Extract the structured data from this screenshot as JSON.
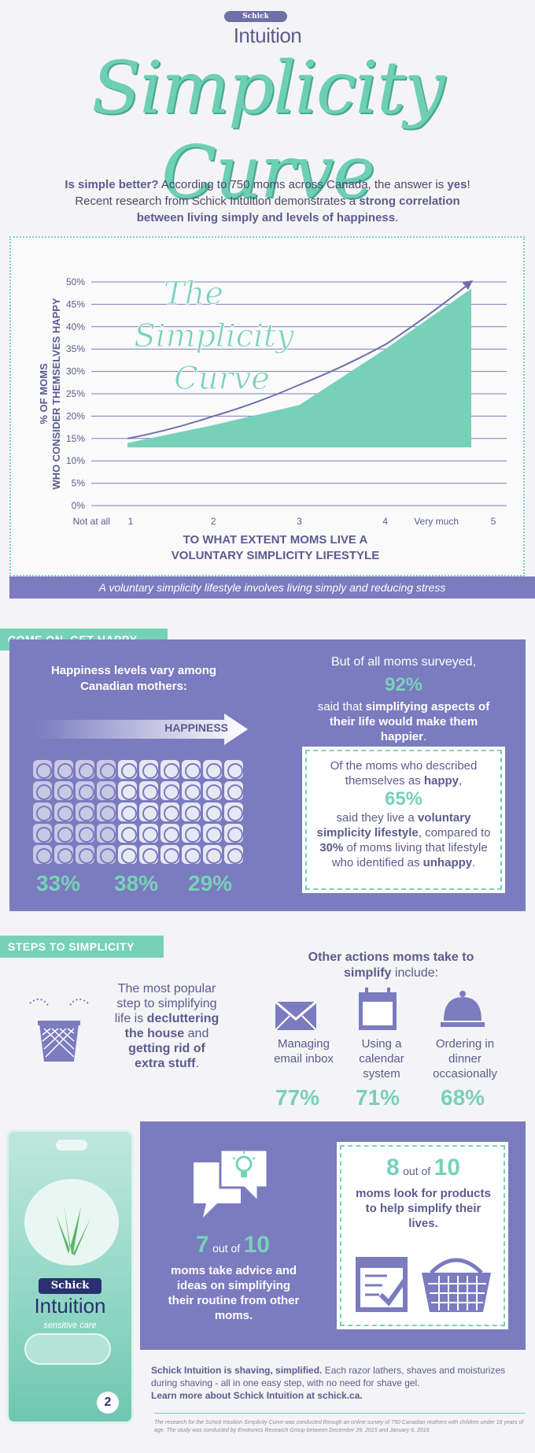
{
  "brand": {
    "schick": "Schick",
    "intuition": "Intuition"
  },
  "title": "Simplicity Curve",
  "intro": {
    "part1": "Is simple better?",
    "part2": " According to 750 moms across Canada, the answer is ",
    "part3": "yes",
    "part4": "! Recent research from Schick Intuition demonstrates a ",
    "part5": "strong correlation between living simply and levels of happiness",
    "part6": "."
  },
  "chart_data": {
    "type": "area",
    "title": "The Simplicity Curve",
    "ylabel": "% OF MOMS WHO CONSIDER THEMSELVES HAPPY",
    "xlabel": "TO WHAT EXTENT MOMS LIVE A VOLUNTARY SIMPLICITY LIFESTYLE",
    "x": [
      1,
      2,
      3,
      4,
      5
    ],
    "x_tick_labels": [
      "Not at all",
      "1",
      "2",
      "3",
      "4",
      "Very much",
      "5"
    ],
    "y_ticks": [
      "0%",
      "5%",
      "10%",
      "15%",
      "20%",
      "25%",
      "30%",
      "35%",
      "40%",
      "45%",
      "50%"
    ],
    "ylim": [
      0,
      50
    ],
    "values": [
      14,
      18,
      22.5,
      35,
      48.5
    ],
    "trend_values": [
      15,
      20,
      27,
      36,
      50
    ],
    "grid": true
  },
  "chart_caption": "A voluntary simplicity lifestyle involves living simply and reducing stress",
  "happy": {
    "tag": "COME ON, GET HAPPY",
    "vary_text": "Happiness levels vary among Canadian mothers:",
    "arrow_label": "HAPPINESS",
    "pcts": [
      "33%",
      "38%",
      "29%"
    ],
    "surveyed_intro": "But of all moms surveyed,",
    "surveyed_pct": "92%",
    "surveyed_text1": "said that ",
    "surveyed_text2": "simplifying aspects of their life would make them happier",
    "surveyed_text3": ".",
    "box_text1": "Of the moms who described themselves as ",
    "box_text2": "happy",
    "box_text3": ",",
    "box_pct": "65%",
    "box_text4": "said they live a ",
    "box_text5": "voluntary simplicity lifestyle",
    "box_text6": ", compared to ",
    "box_text7": "30%",
    "box_text8": " of moms living that lifestyle who identified as ",
    "box_text9": "unhappy",
    "box_text10": "."
  },
  "steps": {
    "tag": "STEPS TO SIMPLICITY",
    "declutter1": "The most popular step to simplifying life is ",
    "declutter2": "decluttering the house",
    "declutter3": " and ",
    "declutter4": "getting rid of extra stuff",
    "declutter5": ".",
    "other1": "Other actions moms take to simplify",
    "other2": " include:",
    "actions": [
      {
        "label": "Managing email inbox",
        "pct": "77%",
        "icon": "envelope-icon"
      },
      {
        "label": "Using a calendar system",
        "pct": "71%",
        "icon": "calendar-icon"
      },
      {
        "label": "Ordering in dinner occasionally",
        "pct": "68%",
        "icon": "cloche-icon"
      }
    ]
  },
  "advice": {
    "num": "7",
    "out_of": "out of",
    "den": "10",
    "text": "moms take advice and ideas on simplifying their routine ",
    "text_b": "from other moms",
    "text_end": "."
  },
  "products": {
    "num": "8",
    "out_of": "out of",
    "den": "10",
    "text1": "moms look for ",
    "text2": "products",
    "text3": " to help ",
    "text4": "simplify their lives",
    "text5": "."
  },
  "footer": {
    "bold1": "Schick Intuition is shaving, simplified.",
    "normal": " Each razor lathers, shaves and moisturizes during shaving - all in one easy step, with no need for shave gel.",
    "bold2": "Learn more about Schick Intuition at schick.ca.",
    "fine": "The research for the Schick Intuition Simplicity Curve was conducted through an online survey of 750 Canadian mothers with children under 18 years of age. The study was conducted by Environics Research Group between December 29, 2015 and January 6, 2016."
  },
  "package": {
    "brand1": "Schick",
    "brand2": "Intuition",
    "variant": "sensitive care",
    "count": "2"
  },
  "colors": {
    "teal": "#77d1b9",
    "purple": "#7b7bc0",
    "dark_purple": "#5b5b90"
  }
}
